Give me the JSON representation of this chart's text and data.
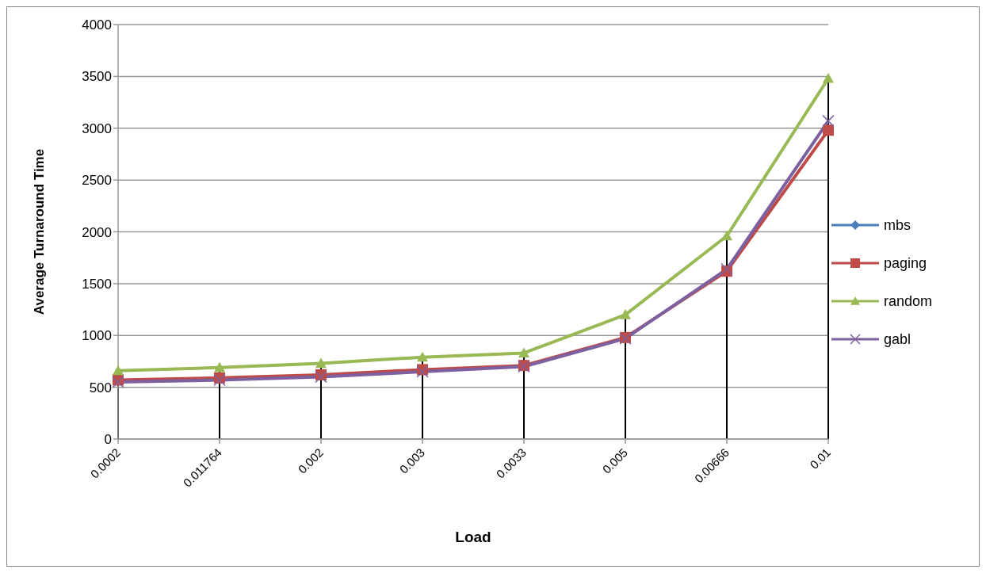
{
  "chart_data": {
    "type": "line",
    "xlabel": "Load",
    "ylabel": "Average Turnaround Time",
    "categories": [
      "0.0002",
      "0.011764",
      "0.002",
      "0.003",
      "0.0033",
      "0.005",
      "0.00666",
      "0.01"
    ],
    "series": [
      {
        "name": "mbs",
        "color": "#4a7ebb",
        "marker": "diamond",
        "values": [
          null,
          null,
          null,
          null,
          null,
          null,
          null,
          null
        ]
      },
      {
        "name": "paging",
        "color": "#be4b48",
        "marker": "square",
        "values": [
          570,
          590,
          620,
          670,
          710,
          980,
          1620,
          2980
        ]
      },
      {
        "name": "random",
        "color": "#98b954",
        "marker": "triangle",
        "values": [
          660,
          690,
          730,
          790,
          830,
          1200,
          1960,
          3480
        ]
      },
      {
        "name": "gabl",
        "color": "#7d60a0",
        "marker": "cross",
        "values": [
          550,
          570,
          600,
          650,
          700,
          970,
          1640,
          3070
        ]
      }
    ],
    "ylim": [
      0,
      4000
    ],
    "yticks": [
      0,
      500,
      1000,
      1500,
      2000,
      2500,
      3000,
      3500,
      4000
    ],
    "grid": "y",
    "legend": "right",
    "ref_lines": [
      {
        "axis": "x",
        "value": "0.0002",
        "color": "#000000"
      },
      {
        "axis": "x",
        "value": "0.011764",
        "color": "#000000"
      },
      {
        "axis": "x",
        "value": "0.002",
        "color": "#000000"
      },
      {
        "axis": "x",
        "value": "0.003",
        "color": "#000000"
      },
      {
        "axis": "x",
        "value": "0.0033",
        "color": "#000000"
      },
      {
        "axis": "x",
        "value": "0.005",
        "color": "#000000"
      },
      {
        "axis": "x",
        "value": "0.00666",
        "color": "#000000"
      },
      {
        "axis": "x",
        "value": "0.01",
        "color": "#000000"
      }
    ]
  }
}
